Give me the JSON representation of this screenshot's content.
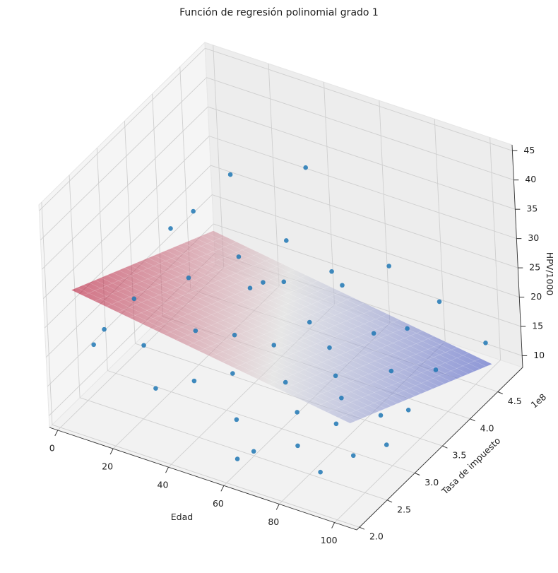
{
  "chart_data": {
    "type": "scatter3d",
    "title": "Función de regresión polinomial grado 1",
    "xlabel": "Edad",
    "ylabel": "Tasa de impuesto",
    "zlabel": "HPV/1000",
    "y_offset_label": "1e8",
    "xlim": [
      -3,
      108
    ],
    "ylim": [
      1.95,
      4.95
    ],
    "zlim": [
      8,
      46
    ],
    "xticks": [
      0,
      20,
      40,
      60,
      80,
      100
    ],
    "yticks": [
      {
        "value": 2,
        "label": "2.0"
      },
      {
        "value": 2.5,
        "label": "2.5"
      },
      {
        "value": 3,
        "label": "3.0"
      },
      {
        "value": 3.5,
        "label": "3.5"
      },
      {
        "value": 4,
        "label": "4.0"
      },
      {
        "value": 4.5,
        "label": "4.5"
      }
    ],
    "zticks": [
      10,
      15,
      20,
      25,
      30,
      35,
      40,
      45
    ],
    "grid": true,
    "series": [
      {
        "color": "#1f77b4",
        "x": [
          5,
          8,
          3,
          12,
          15,
          20,
          22,
          25,
          28,
          30,
          33,
          35,
          38,
          40,
          42,
          45,
          47,
          50,
          52,
          55,
          57,
          60,
          62,
          64,
          66,
          68,
          70,
          72,
          74,
          76,
          78,
          80,
          82,
          84,
          86,
          88,
          90,
          92,
          94,
          96,
          98,
          35,
          10,
          58,
          45
        ],
        "y": [
          2.6,
          3.0,
          2.5,
          3.5,
          2.8,
          4.2,
          3.3,
          2.5,
          3.9,
          3.0,
          4.5,
          2.7,
          3.6,
          3.2,
          4.0,
          2.9,
          4.6,
          3.4,
          2.6,
          3.8,
          4.3,
          3.1,
          2.4,
          3.7,
          4.7,
          2.9,
          3.5,
          4.1,
          2.6,
          3.3,
          4.4,
          3.0,
          3.9,
          2.5,
          4.6,
          3.4,
          2.8,
          4.2,
          3.6,
          3.1,
          4.8,
          4.8,
          4.0,
          2.3,
          3.5
        ],
        "z": [
          20,
          22,
          18,
          30,
          17,
          34,
          25,
          14,
          24,
          20,
          22,
          15,
          23,
          19,
          21,
          16,
          18,
          17,
          12,
          18,
          20,
          15,
          10,
          16,
          21,
          13,
          14,
          16,
          11,
          13,
          15,
          12,
          13,
          9,
          19,
          11,
          10,
          12,
          11,
          10,
          12,
          32,
          28,
          9,
          26
        ]
      }
    ],
    "surface": {
      "x": [
        0,
        100
      ],
      "y": [
        2.3,
        4.8
      ],
      "z": [
        [
          28.7,
          15.7
        ],
        [
          21.7,
          8.7
        ]
      ],
      "colormap": [
        "#b40426",
        "#dddddd",
        "#3b4cc0"
      ]
    }
  }
}
